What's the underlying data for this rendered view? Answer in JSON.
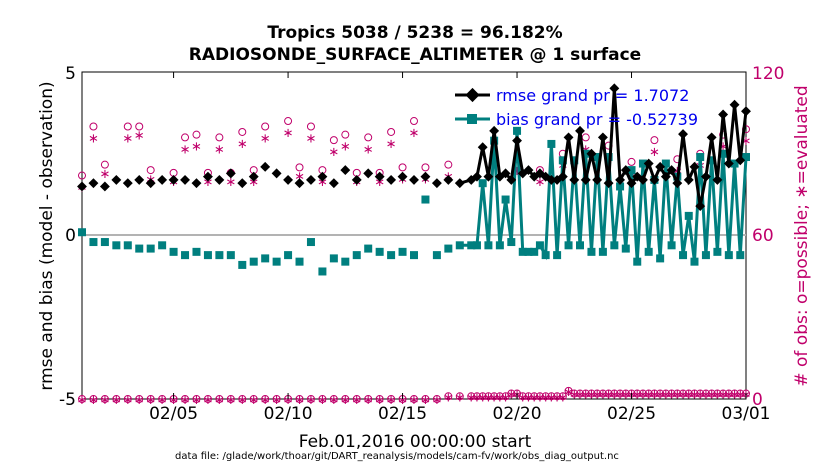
{
  "chart_data": {
    "type": "line",
    "title_line1": "Tropics 5038 / 5238 = 96.182%",
    "title_line2": "RADIOSONDE_SURFACE_ALTIMETER @ 1 surface",
    "ylabel_left": "rmse and bias (model - observation)",
    "ylabel_right": "# of obs: o=possible; ∗=evaluated",
    "xlabel": "Feb.01,2016 00:00:00 start",
    "footnote": "data file: /glade/work/thoar/git/DART_reanalysis/models/cam-fv/work/obs_diag_output.nc",
    "ylim_left": [
      -5,
      5
    ],
    "ylim_right": [
      0,
      120
    ],
    "xlim": [
      1,
      30
    ],
    "y_ticks_left": [
      "5",
      "0",
      "-5"
    ],
    "y_ticks_right": [
      "120",
      "60",
      "0"
    ],
    "x_ticks": [
      {
        "x": 5,
        "label": "02/05"
      },
      {
        "x": 10,
        "label": "02/10"
      },
      {
        "x": 15,
        "label": "02/15"
      },
      {
        "x": 20,
        "label": "02/20"
      },
      {
        "x": 25,
        "label": "02/25"
      },
      {
        "x": 30,
        "label": "03/01"
      }
    ],
    "legend": [
      {
        "name": "rmse grand pr = 1.7072",
        "series": "rmse"
      },
      {
        "name": "bias grand pr = -0.52739",
        "series": "bias"
      }
    ],
    "zero_line": 0,
    "x": [
      1.0,
      1.5,
      2.0,
      2.5,
      3.0,
      3.5,
      4.0,
      4.5,
      5.0,
      5.5,
      6.0,
      6.5,
      7.0,
      7.5,
      8.0,
      8.5,
      9.0,
      9.5,
      10.0,
      10.5,
      11.0,
      11.5,
      12.0,
      12.5,
      13.0,
      13.5,
      14.0,
      14.5,
      15.0,
      15.5,
      16.0,
      16.5,
      17.0,
      17.5,
      18.0,
      18.25,
      18.5,
      18.75,
      19.0,
      19.25,
      19.5,
      19.75,
      20.0,
      20.25,
      20.5,
      20.75,
      21.0,
      21.25,
      21.5,
      21.75,
      22.0,
      22.25,
      22.5,
      22.75,
      23.0,
      23.25,
      23.5,
      23.75,
      24.0,
      24.25,
      24.5,
      24.75,
      25.0,
      25.25,
      25.5,
      25.75,
      26.0,
      26.25,
      26.5,
      26.75,
      27.0,
      27.25,
      27.5,
      27.75,
      28.0,
      28.25,
      28.5,
      28.75,
      29.0,
      29.25,
      29.5,
      29.75,
      30.0
    ],
    "series": [
      {
        "name": "rmse",
        "color": "#000000",
        "values": [
          1.5,
          1.6,
          1.5,
          1.7,
          1.6,
          1.7,
          1.6,
          1.7,
          1.7,
          1.7,
          1.6,
          1.8,
          1.7,
          1.9,
          1.6,
          1.8,
          2.1,
          1.9,
          1.7,
          1.6,
          1.7,
          1.8,
          1.6,
          2.0,
          1.7,
          1.9,
          1.8,
          1.7,
          1.8,
          1.7,
          1.8,
          1.6,
          1.7,
          1.6,
          1.7,
          1.8,
          2.7,
          1.8,
          3.2,
          1.8,
          1.9,
          1.7,
          2.9,
          1.9,
          2.0,
          1.8,
          1.9,
          1.8,
          1.7,
          1.7,
          1.8,
          3.0,
          1.7,
          3.2,
          1.7,
          2.5,
          1.7,
          3.0,
          1.6,
          4.5,
          1.7,
          2.0,
          1.6,
          1.8,
          1.7,
          2.2,
          1.7,
          2.1,
          1.8,
          2.0,
          1.6,
          3.1,
          1.7,
          2.1,
          0.9,
          1.8,
          3.0,
          1.7,
          3.7,
          2.2,
          4.0,
          2.3,
          3.8
        ]
      },
      {
        "name": "bias",
        "color": "#007f7f",
        "values": [
          0.1,
          -0.2,
          -0.2,
          -0.3,
          -0.3,
          -0.4,
          -0.4,
          -0.3,
          -0.5,
          -0.6,
          -0.5,
          -0.6,
          -0.6,
          -0.6,
          -0.9,
          -0.8,
          -0.7,
          -0.8,
          -0.6,
          -0.8,
          -0.2,
          -1.1,
          -0.7,
          -0.8,
          -0.6,
          -0.4,
          -0.5,
          -0.6,
          -0.5,
          -0.6,
          1.1,
          -0.6,
          -0.4,
          -0.3,
          -0.3,
          -0.3,
          1.6,
          -0.3,
          2.9,
          -0.3,
          1.1,
          -0.2,
          3.2,
          -0.5,
          -0.5,
          -0.5,
          -0.3,
          -0.6,
          2.8,
          -0.6,
          2.3,
          -0.3,
          2.3,
          -0.3,
          2.5,
          -0.5,
          2.4,
          -0.5,
          2.4,
          -0.3,
          1.5,
          -0.4,
          2.0,
          -0.8,
          2.2,
          -0.5,
          1.7,
          -0.7,
          2.2,
          -0.3,
          1.8,
          -0.6,
          0.6,
          -0.8,
          2.4,
          -0.6,
          2.3,
          -0.5,
          2.5,
          -0.6,
          2.2,
          -0.6,
          2.4
        ]
      },
      {
        "name": "obs_possible",
        "color": "#c0006b",
        "axis": "right",
        "marker": "circle",
        "values": [
          0,
          0,
          0,
          0,
          0,
          0,
          0,
          0,
          0,
          0,
          0,
          0,
          0,
          0,
          0,
          0,
          0,
          0,
          0,
          0,
          0,
          0,
          0,
          0,
          0,
          0,
          0,
          0,
          0,
          0,
          0,
          0,
          1,
          1,
          1,
          1,
          1,
          1,
          1,
          1,
          1,
          2,
          2,
          1,
          1,
          1,
          1,
          1,
          1,
          1,
          1,
          3,
          2,
          2,
          2,
          2,
          2,
          2,
          2,
          2,
          2,
          2,
          2,
          2,
          2,
          2,
          2,
          2,
          2,
          2,
          2,
          2,
          2,
          2,
          2,
          2,
          2,
          2,
          2,
          2,
          2,
          2,
          2
        ]
      },
      {
        "name": "obs_evaluated",
        "color": "#c0006b",
        "axis": "right",
        "marker": "star",
        "values": [
          0,
          0,
          0,
          0,
          0,
          0,
          0,
          0,
          0,
          0,
          0,
          0,
          0,
          0,
          0,
          0,
          0,
          0,
          0,
          0,
          0,
          0,
          0,
          0,
          0,
          0,
          0,
          0,
          0,
          0,
          0,
          0,
          1,
          1,
          1,
          1,
          1,
          1,
          1,
          1,
          1,
          2,
          2,
          1,
          1,
          1,
          1,
          1,
          1,
          1,
          1,
          3,
          2,
          2,
          2,
          2,
          2,
          2,
          2,
          2,
          2,
          2,
          2,
          2,
          2,
          2,
          2,
          2,
          2,
          2,
          2,
          2,
          2,
          2,
          2,
          2,
          2,
          2,
          2,
          2,
          2,
          2,
          2
        ]
      },
      {
        "name": "obs_possible_12z",
        "color": "#c0006b",
        "axis": "right",
        "marker": "circle",
        "x": [
          1,
          1.5,
          2,
          3,
          3.5,
          4,
          5,
          5.5,
          6,
          6.5,
          7,
          7.5,
          8,
          8.5,
          9,
          10,
          10.5,
          11,
          11.5,
          12,
          12.5,
          13,
          13.5,
          14,
          14.5,
          15,
          15.5,
          16,
          17,
          20,
          21,
          22,
          23,
          24,
          25,
          26,
          27,
          28,
          29,
          30
        ],
        "values": [
          82,
          100,
          86,
          100,
          100,
          84,
          83,
          96,
          97,
          83,
          96,
          83,
          98,
          84,
          100,
          102,
          85,
          100,
          84,
          95,
          97,
          83,
          96,
          83,
          98,
          85,
          102,
          85,
          86,
          88,
          84,
          90,
          96,
          93,
          87,
          95,
          88,
          90,
          97,
          99
        ]
      },
      {
        "name": "obs_evaluated_12z",
        "color": "#c0006b",
        "axis": "right",
        "marker": "star",
        "x": [
          1,
          1.5,
          2,
          3,
          3.5,
          4,
          5,
          5.5,
          6,
          6.5,
          7,
          7.5,
          8,
          8.5,
          9,
          10,
          10.5,
          11,
          11.5,
          12,
          12.5,
          13,
          13.5,
          14,
          14.5,
          15,
          15.5,
          16,
          17,
          20,
          21,
          22,
          23,
          24,
          25,
          26,
          27,
          28,
          29,
          30
        ],
        "values": [
          78,
          96,
          83,
          96,
          97,
          81,
          80,
          92,
          93,
          80,
          92,
          80,
          94,
          80,
          96,
          98,
          82,
          96,
          80,
          91,
          93,
          80,
          92,
          80,
          94,
          81,
          98,
          81,
          82,
          84,
          80,
          86,
          92,
          89,
          83,
          91,
          84,
          86,
          93,
          95
        ]
      }
    ]
  }
}
